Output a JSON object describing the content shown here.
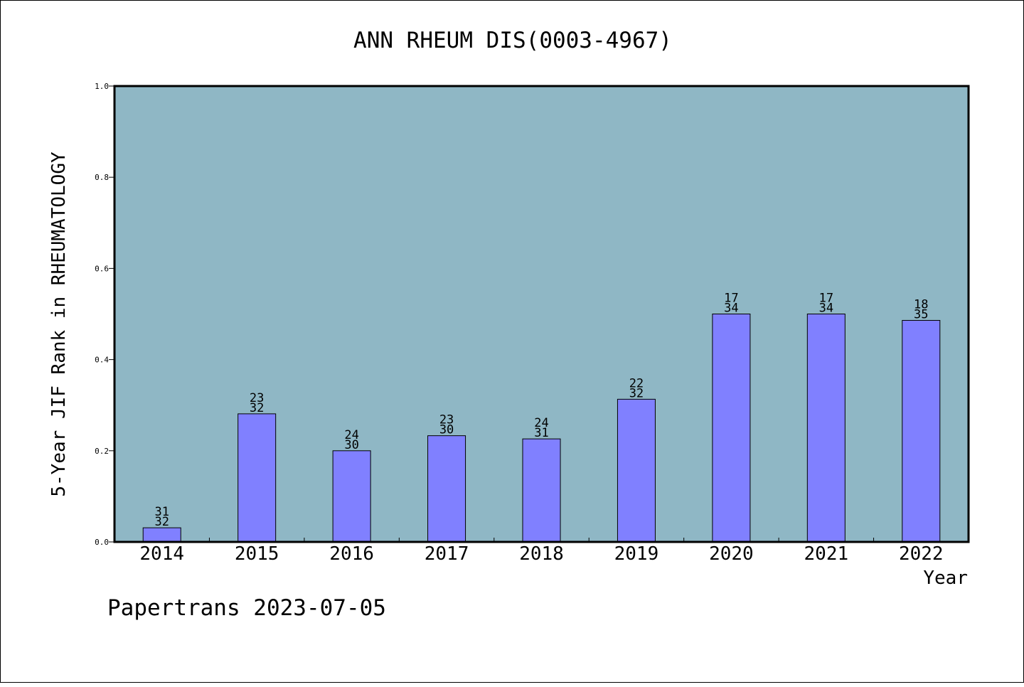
{
  "chart_data": {
    "type": "bar",
    "title": "ANN RHEUM DIS(0003-4967)",
    "ylabel": "5-Year JIF Rank in RHEUMATOLOGY",
    "xlabel": "Year",
    "ylim": [
      0.0,
      1.0
    ],
    "yticks": [
      "0.0",
      "0.2",
      "0.4",
      "0.6",
      "0.8",
      "1.0"
    ],
    "categories": [
      "2014",
      "2015",
      "2016",
      "2017",
      "2018",
      "2019",
      "2020",
      "2021",
      "2022"
    ],
    "values": [
      0.031,
      0.281,
      0.2,
      0.233,
      0.226,
      0.313,
      0.5,
      0.5,
      0.486
    ],
    "annotations": [
      {
        "rank": "31",
        "total": "32"
      },
      {
        "rank": "23",
        "total": "32"
      },
      {
        "rank": "24",
        "total": "30"
      },
      {
        "rank": "23",
        "total": "30"
      },
      {
        "rank": "24",
        "total": "31"
      },
      {
        "rank": "22",
        "total": "32"
      },
      {
        "rank": "17",
        "total": "34"
      },
      {
        "rank": "17",
        "total": "34"
      },
      {
        "rank": "18",
        "total": "35"
      }
    ],
    "grid": false,
    "colors": {
      "plot_background": "#8fb7c5",
      "bar_fill": "#8080ff",
      "bar_edge": "#000000"
    }
  },
  "footer": {
    "watermark": "Papertrans 2023-07-05"
  }
}
